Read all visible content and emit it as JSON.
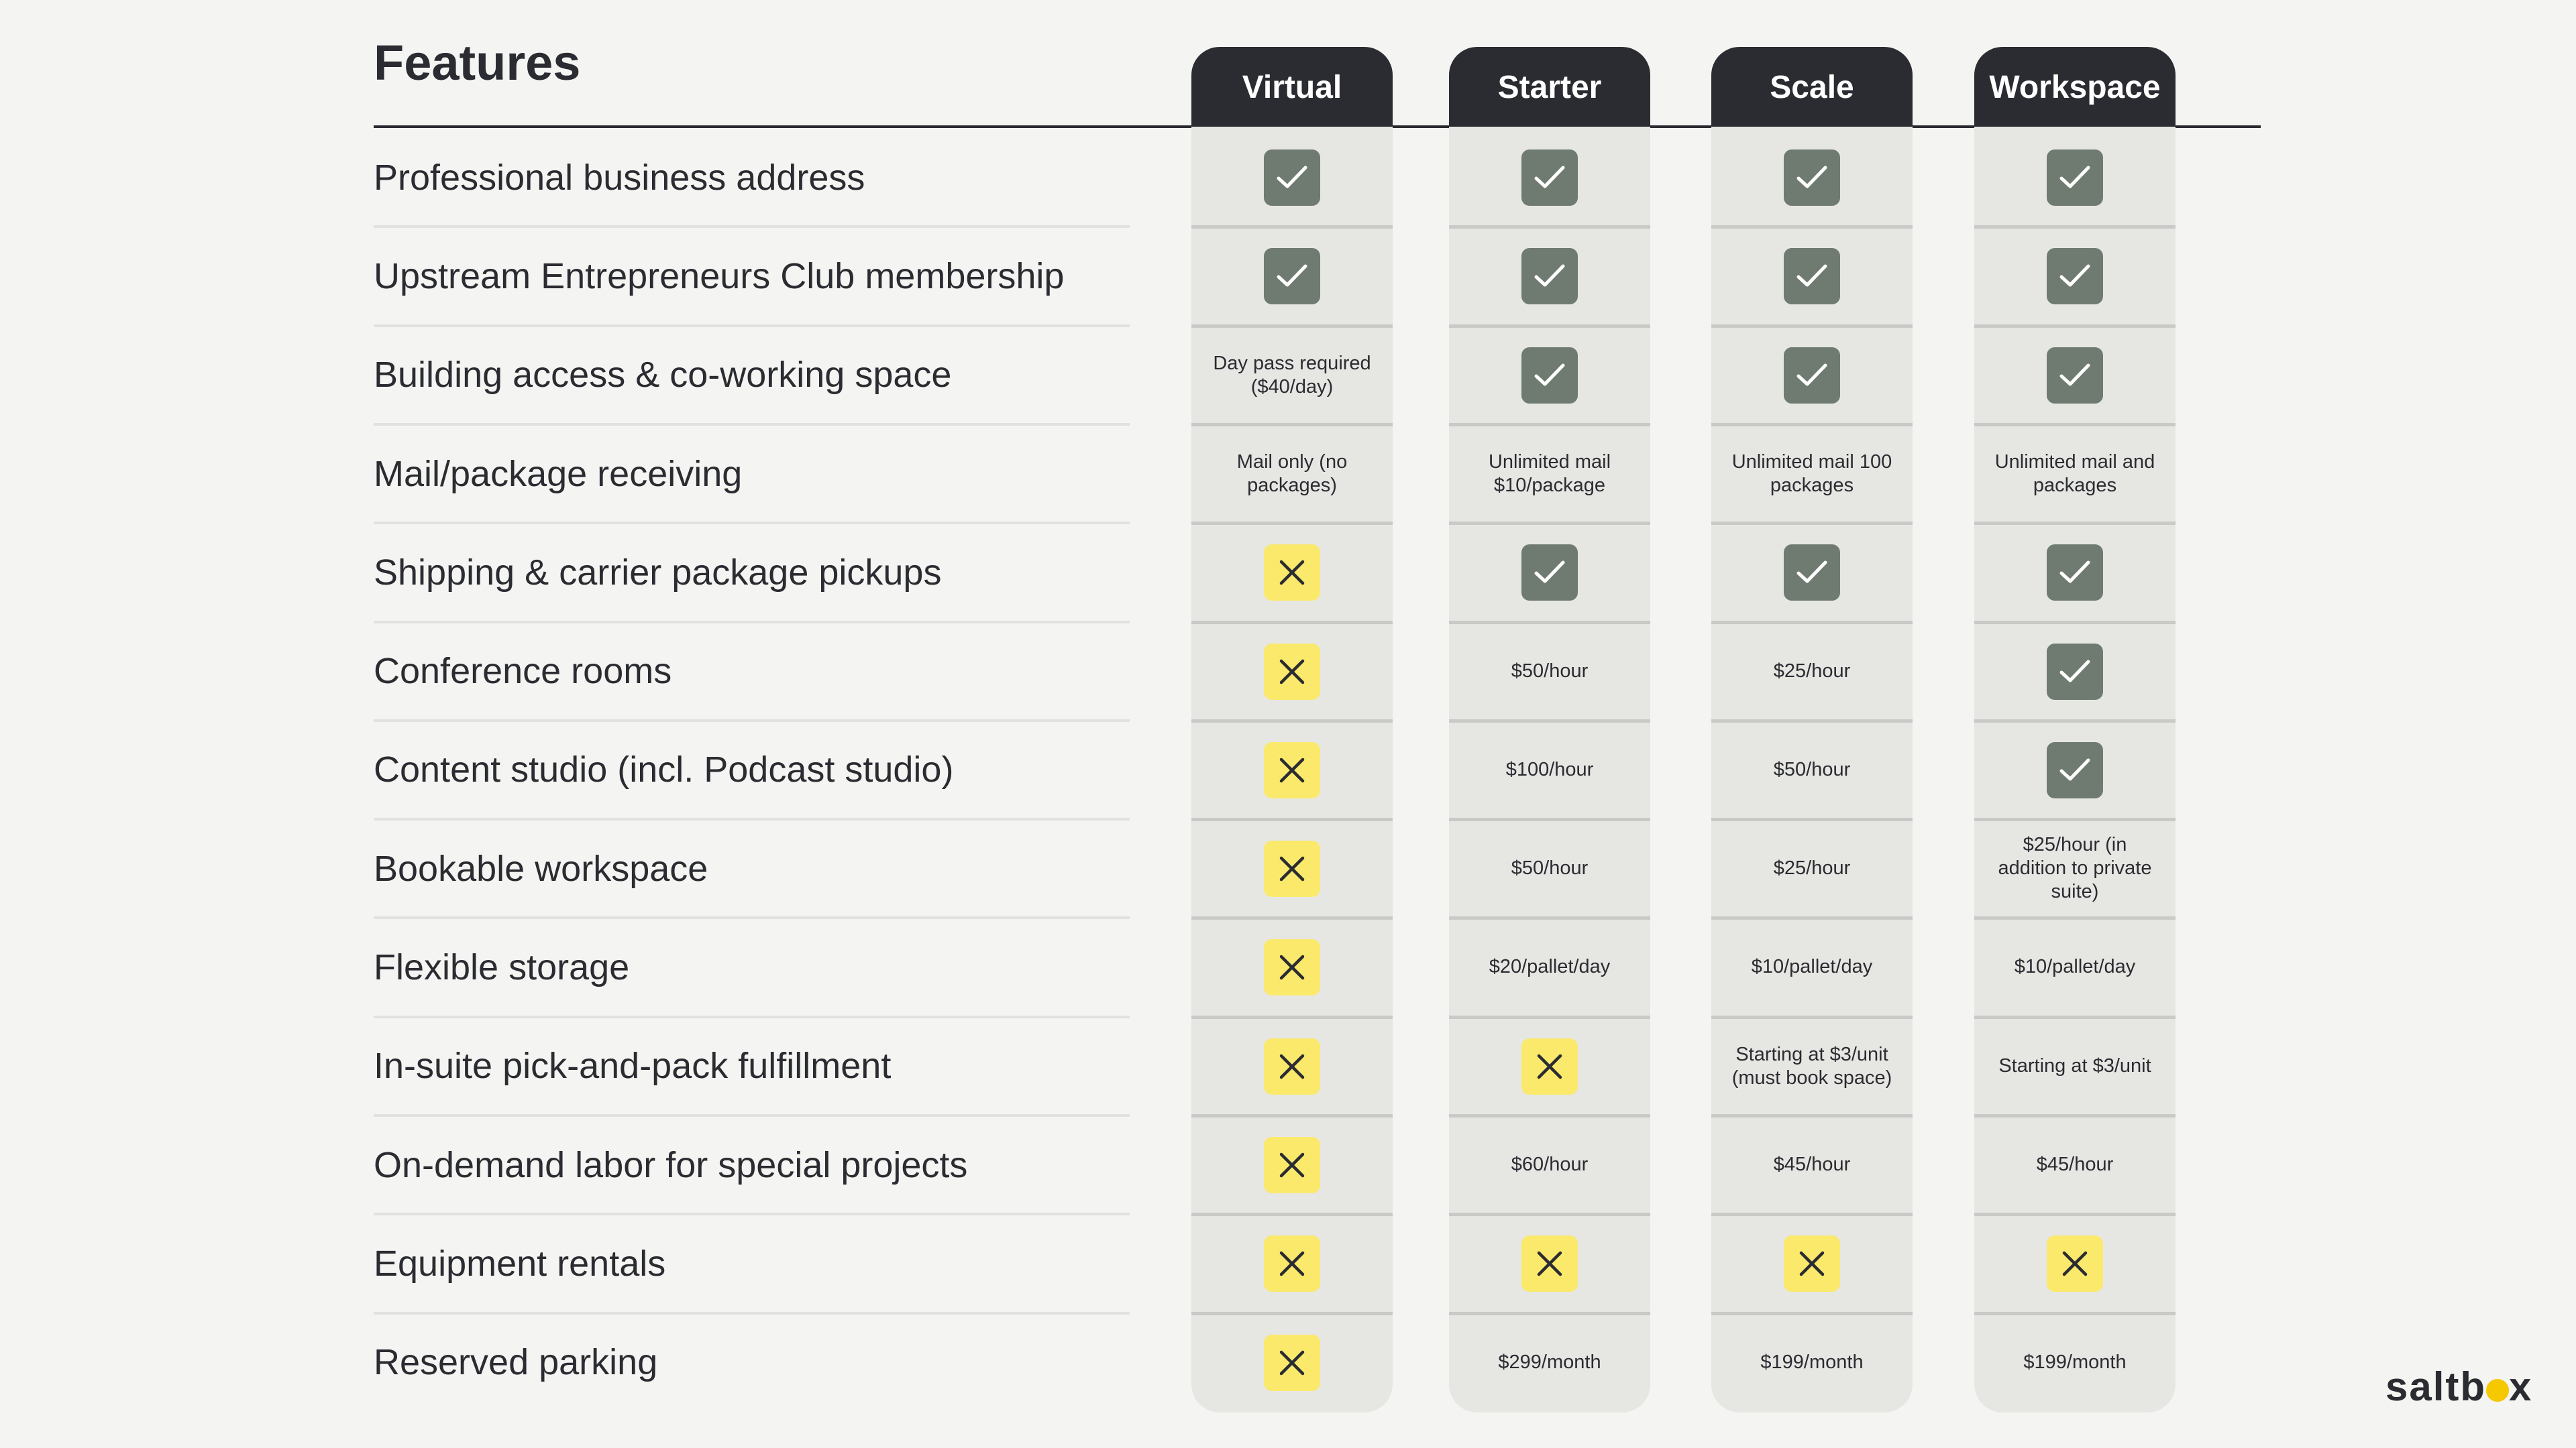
{
  "header": {
    "title": "Features"
  },
  "plans": [
    {
      "name": "Virtual"
    },
    {
      "name": "Starter"
    },
    {
      "name": "Scale"
    },
    {
      "name": "Workspace"
    }
  ],
  "features": [
    {
      "label": "Professional business address",
      "cells": [
        {
          "type": "check"
        },
        {
          "type": "check"
        },
        {
          "type": "check"
        },
        {
          "type": "check"
        }
      ]
    },
    {
      "label": "Upstream Entrepreneurs Club membership",
      "cells": [
        {
          "type": "check"
        },
        {
          "type": "check"
        },
        {
          "type": "check"
        },
        {
          "type": "check"
        }
      ]
    },
    {
      "label": "Building access & co-working space",
      "cells": [
        {
          "type": "text",
          "text": "Day pass required ($40/day)"
        },
        {
          "type": "check"
        },
        {
          "type": "check"
        },
        {
          "type": "check"
        }
      ]
    },
    {
      "label": "Mail/package receiving",
      "cells": [
        {
          "type": "text",
          "text": "Mail only (no packages)"
        },
        {
          "type": "text",
          "text": "Unlimited mail $10/package"
        },
        {
          "type": "text",
          "text": "Unlimited mail 100 packages"
        },
        {
          "type": "text",
          "text": "Unlimited mail and packages"
        }
      ]
    },
    {
      "label": "Shipping & carrier package pickups",
      "cells": [
        {
          "type": "x"
        },
        {
          "type": "check"
        },
        {
          "type": "check"
        },
        {
          "type": "check"
        }
      ]
    },
    {
      "label": "Conference rooms",
      "cells": [
        {
          "type": "x"
        },
        {
          "type": "text",
          "text": "$50/hour"
        },
        {
          "type": "text",
          "text": "$25/hour"
        },
        {
          "type": "check"
        }
      ]
    },
    {
      "label": "Content studio (incl. Podcast studio)",
      "cells": [
        {
          "type": "x"
        },
        {
          "type": "text",
          "text": "$100/hour"
        },
        {
          "type": "text",
          "text": "$50/hour"
        },
        {
          "type": "check"
        }
      ]
    },
    {
      "label": "Bookable workspace",
      "cells": [
        {
          "type": "x"
        },
        {
          "type": "text",
          "text": "$50/hour"
        },
        {
          "type": "text",
          "text": "$25/hour"
        },
        {
          "type": "text",
          "text": "$25/hour (in addition to private suite)"
        }
      ]
    },
    {
      "label": "Flexible storage",
      "cells": [
        {
          "type": "x"
        },
        {
          "type": "text",
          "text": "$20/pallet/day"
        },
        {
          "type": "text",
          "text": "$10/pallet/day"
        },
        {
          "type": "text",
          "text": "$10/pallet/day"
        }
      ]
    },
    {
      "label": "In-suite pick-and-pack fulfillment",
      "cells": [
        {
          "type": "x"
        },
        {
          "type": "x"
        },
        {
          "type": "text",
          "text": "Starting at $3/unit (must book space)"
        },
        {
          "type": "text",
          "text": "Starting at $3/unit"
        }
      ]
    },
    {
      "label": "On-demand labor for special projects",
      "cells": [
        {
          "type": "x"
        },
        {
          "type": "text",
          "text": "$60/hour"
        },
        {
          "type": "text",
          "text": "$45/hour"
        },
        {
          "type": "text",
          "text": "$45/hour"
        }
      ]
    },
    {
      "label": "Equipment rentals",
      "cells": [
        {
          "type": "x"
        },
        {
          "type": "x"
        },
        {
          "type": "x"
        },
        {
          "type": "x"
        }
      ]
    },
    {
      "label": "Reserved parking",
      "cells": [
        {
          "type": "x"
        },
        {
          "type": "text",
          "text": "$299/month"
        },
        {
          "type": "text",
          "text": "$199/month"
        },
        {
          "type": "text",
          "text": "$199/month"
        }
      ]
    }
  ],
  "logo": {
    "text_before": "saltb",
    "text_after": "x"
  },
  "colors": {
    "dark": "#2b2c31",
    "check_bg": "#6f7b70",
    "x_bg": "#fbe96c",
    "column_bg": "#e6e7e3",
    "page_bg": "#f4f4f2",
    "logo_accent": "#f5c800"
  },
  "icons": {
    "check": "checkmark-icon",
    "x": "x-mark-icon"
  }
}
